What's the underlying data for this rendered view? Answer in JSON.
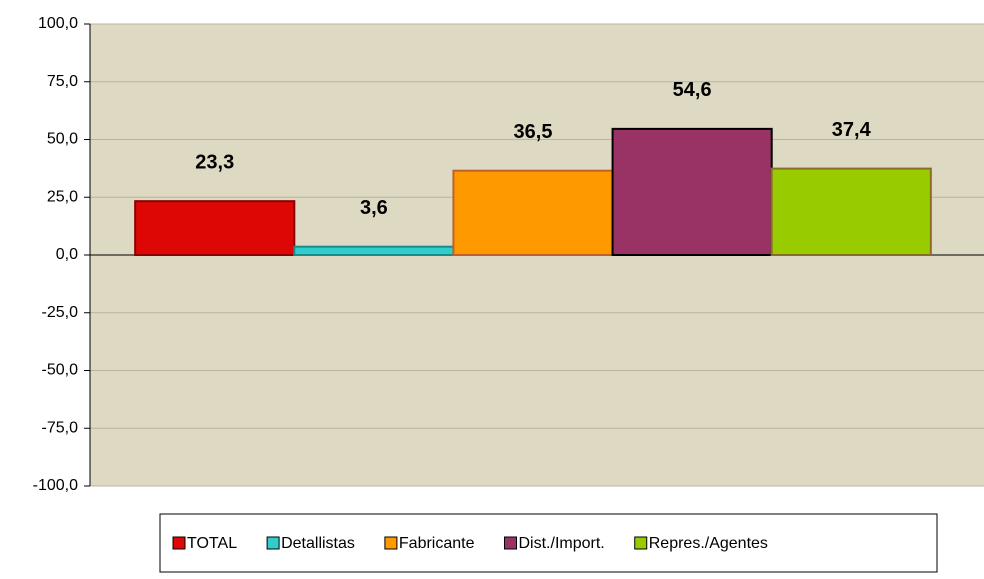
{
  "chart_data": {
    "type": "bar",
    "categories": [
      null
    ],
    "series": [
      {
        "name": "TOTAL",
        "color": "#dd0806",
        "edgecolor": "#8b0000",
        "values": [
          23.3
        ],
        "value_labels": [
          "23,3"
        ]
      },
      {
        "name": "Detallistas",
        "color": "#33cccc",
        "edgecolor": "#1a8c8c",
        "values": [
          3.6
        ],
        "value_labels": [
          "3,6"
        ]
      },
      {
        "name": "Fabricante",
        "color": "#ff9900",
        "edgecolor": "#c0602a",
        "values": [
          36.5
        ],
        "value_labels": [
          "36,5"
        ]
      },
      {
        "name": "Dist./Import.",
        "color": "#993366",
        "edgecolor": "#000000",
        "values": [
          54.6
        ],
        "value_labels": [
          "54,6"
        ]
      },
      {
        "name": "Repres./Agentes",
        "color": "#99cc00",
        "edgecolor": "#8a6d2a",
        "values": [
          37.4
        ],
        "value_labels": [
          "37,4"
        ]
      }
    ],
    "ylim": [
      -100,
      100
    ],
    "yticks": [
      {
        "value": -100,
        "label": "-100,0"
      },
      {
        "value": -75,
        "label": "-75,0"
      },
      {
        "value": -50,
        "label": "-50,0"
      },
      {
        "value": -25,
        "label": "-25,0"
      },
      {
        "value": 0,
        "label": "0,0"
      },
      {
        "value": 25,
        "label": "25,0"
      },
      {
        "value": 50,
        "label": "50,0"
      },
      {
        "value": 75,
        "label": "75,0"
      },
      {
        "value": 100,
        "label": "100,0"
      }
    ],
    "grid": true,
    "legend": "bottom",
    "plot_background": "#ddd9c3"
  }
}
